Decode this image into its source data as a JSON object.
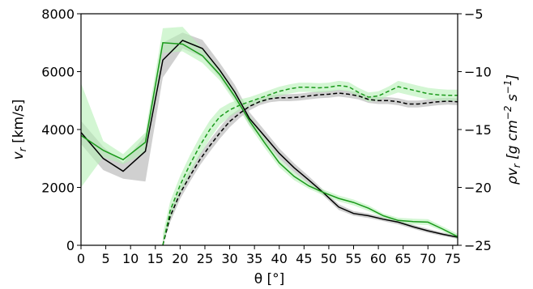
{
  "chart_data": {
    "type": "line",
    "xlabel": "θ [°]",
    "ylabel_left": {
      "main": "v",
      "sub": "r",
      "unit": " [km/s]"
    },
    "ylabel_right": {
      "main": "ρv",
      "sub": "r",
      "unit_open": " [g cm",
      "exp1": "−2",
      "unit_mid": " s",
      "exp2": "−1",
      "unit_close": "]"
    },
    "xlim": [
      0,
      76
    ],
    "ylim_left": [
      0,
      8000
    ],
    "ylim_right": [
      -25,
      -5
    ],
    "xticks": [
      "0",
      "5",
      "10",
      "15",
      "20",
      "25",
      "30",
      "35",
      "40",
      "45",
      "50",
      "55",
      "60",
      "65",
      "70",
      "75"
    ],
    "yticks_left": [
      "0",
      "2000",
      "4000",
      "6000",
      "8000"
    ],
    "yticks_right": [
      "−25",
      "−20",
      "−15",
      "−10",
      "−5"
    ],
    "colors": {
      "black": "#000000",
      "green": "#1a9a1a",
      "grey_band": "#c8c8c8",
      "green_band": "#b5f0b5"
    },
    "series": [
      {
        "axis": "left",
        "color": "black",
        "style": "solid",
        "x": [
          0,
          4.5,
          8.5,
          13,
          16.5,
          20.5,
          24.5,
          28,
          31,
          34,
          37,
          40,
          43,
          46,
          49,
          52,
          55,
          58,
          61,
          64,
          67,
          70,
          73,
          76
        ],
        "y": [
          3900,
          3000,
          2560,
          3250,
          6400,
          7080,
          6800,
          6050,
          5300,
          4380,
          3780,
          3180,
          2680,
          2250,
          1800,
          1320,
          1100,
          1020,
          900,
          800,
          640,
          500,
          380,
          280
        ],
        "band_lo": [
          3500,
          2600,
          2300,
          2200,
          5800,
          6800,
          6500,
          5800,
          5050,
          4150,
          3580,
          3000,
          2530,
          2120,
          1700,
          1220,
          1020,
          940,
          830,
          720,
          570,
          430,
          320,
          220
        ],
        "band_hi": [
          4300,
          3400,
          2850,
          3800,
          7000,
          7350,
          7100,
          6300,
          5550,
          4600,
          3980,
          3350,
          2830,
          2380,
          1900,
          1420,
          1180,
          1100,
          970,
          880,
          710,
          570,
          440,
          340
        ]
      },
      {
        "axis": "left",
        "color": "green",
        "style": "solid",
        "x": [
          0,
          4.5,
          8.5,
          13,
          16.5,
          20.5,
          24.5,
          28,
          31,
          34,
          37,
          40,
          43,
          46,
          49,
          52,
          55,
          58,
          61,
          64,
          67,
          70,
          73,
          76
        ],
        "y": [
          3800,
          3280,
          2960,
          3560,
          7000,
          6950,
          6550,
          5900,
          5150,
          4300,
          3550,
          2850,
          2380,
          2050,
          1820,
          1620,
          1480,
          1280,
          1020,
          860,
          820,
          800,
          560,
          300
        ],
        "band_lo": [
          2000,
          3050,
          2800,
          3200,
          6650,
          6700,
          6300,
          5700,
          4950,
          4120,
          3380,
          2700,
          2250,
          1950,
          1720,
          1520,
          1380,
          1180,
          950,
          780,
          720,
          700,
          480,
          200
        ],
        "band_hi": [
          5600,
          3600,
          3150,
          3900,
          7500,
          7550,
          6800,
          6100,
          5350,
          4480,
          3720,
          3000,
          2520,
          2150,
          1920,
          1720,
          1580,
          1380,
          1100,
          950,
          920,
          900,
          650,
          400
        ]
      },
      {
        "axis": "right",
        "color": "black",
        "style": "dashed",
        "x": [
          16.5,
          18,
          20,
          22,
          24,
          26,
          28,
          30,
          32,
          34,
          36,
          38,
          40,
          42,
          44,
          46,
          48,
          50,
          52,
          54,
          56,
          58,
          60,
          62,
          64,
          66,
          68,
          70,
          72,
          74,
          76
        ],
        "y": [
          -25,
          -22.5,
          -20.5,
          -19.0,
          -17.6,
          -16.4,
          -15.3,
          -14.3,
          -13.6,
          -13.0,
          -12.6,
          -12.35,
          -12.25,
          -12.25,
          -12.2,
          -12.1,
          -12.0,
          -11.95,
          -11.85,
          -11.95,
          -12.1,
          -12.4,
          -12.5,
          -12.5,
          -12.6,
          -12.8,
          -12.8,
          -12.7,
          -12.6,
          -12.55,
          -12.6
        ],
        "band_lo": [
          -25,
          -23.0,
          -21.0,
          -19.5,
          -18.1,
          -16.9,
          -15.8,
          -14.8,
          -14.0,
          -13.35,
          -12.9,
          -12.65,
          -12.55,
          -12.55,
          -12.5,
          -12.4,
          -12.3,
          -12.25,
          -12.15,
          -12.25,
          -12.4,
          -12.7,
          -12.8,
          -12.8,
          -12.9,
          -13.1,
          -13.1,
          -13.0,
          -12.9,
          -12.85,
          -12.9
        ],
        "band_hi": [
          -24.5,
          -22.0,
          -20.0,
          -18.5,
          -17.1,
          -15.9,
          -14.8,
          -13.8,
          -13.2,
          -12.65,
          -12.3,
          -12.05,
          -11.95,
          -11.95,
          -11.9,
          -11.8,
          -11.7,
          -11.65,
          -11.55,
          -11.65,
          -11.8,
          -12.1,
          -12.2,
          -12.2,
          -12.3,
          -12.5,
          -12.5,
          -12.4,
          -12.3,
          -12.25,
          -12.3
        ]
      },
      {
        "axis": "right",
        "color": "green",
        "style": "dashed",
        "x": [
          16.5,
          18,
          20,
          22,
          24,
          26,
          28,
          30,
          32,
          34,
          36,
          38,
          40,
          42,
          44,
          46,
          48,
          50,
          52,
          54,
          56,
          58,
          60,
          62,
          64,
          66,
          68,
          70,
          72,
          74,
          76
        ],
        "y": [
          -25,
          -22.0,
          -19.8,
          -18.0,
          -16.4,
          -15.0,
          -13.9,
          -13.3,
          -12.9,
          -12.6,
          -12.3,
          -12.0,
          -11.7,
          -11.5,
          -11.35,
          -11.35,
          -11.4,
          -11.35,
          -11.2,
          -11.3,
          -11.8,
          -12.2,
          -12.1,
          -11.7,
          -11.3,
          -11.5,
          -11.7,
          -11.9,
          -12.0,
          -12.05,
          -12.05
        ],
        "band_lo": [
          -25,
          -22.8,
          -20.6,
          -18.8,
          -17.2,
          -15.8,
          -14.6,
          -13.9,
          -13.4,
          -13.0,
          -12.7,
          -12.4,
          -12.1,
          -11.9,
          -11.75,
          -11.75,
          -11.8,
          -11.75,
          -11.6,
          -11.7,
          -12.2,
          -12.6,
          -12.5,
          -12.1,
          -11.8,
          -12.0,
          -12.2,
          -12.4,
          -12.5,
          -12.55,
          -12.55
        ],
        "band_hi": [
          -24.0,
          -21.2,
          -19.0,
          -17.2,
          -15.6,
          -14.2,
          -13.2,
          -12.7,
          -12.4,
          -12.2,
          -11.9,
          -11.6,
          -11.3,
          -11.1,
          -10.95,
          -10.95,
          -11.0,
          -10.95,
          -10.8,
          -10.9,
          -11.4,
          -11.8,
          -11.7,
          -11.3,
          -10.8,
          -11.0,
          -11.2,
          -11.4,
          -11.5,
          -11.55,
          -11.55
        ]
      }
    ]
  }
}
